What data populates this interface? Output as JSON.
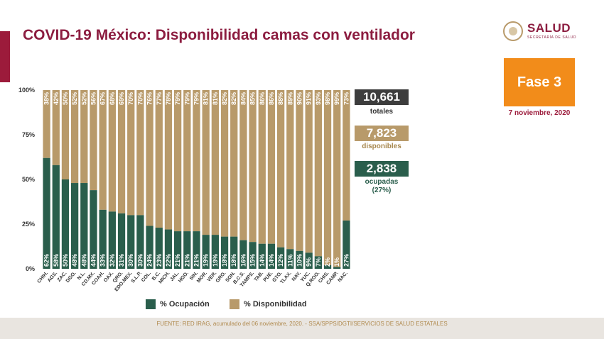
{
  "header": {
    "title": "COVID-19 México: Disponibilidad camas con ventilador",
    "logo_text": "SALUD",
    "logo_subtext": "SECRETARÍA DE SALUD"
  },
  "phase_label": "Fase 3",
  "date": "7 noviembre, 2020",
  "stats": {
    "total_value": "10,661",
    "total_label": "totales",
    "available_value": "7,823",
    "available_label": "disponibles",
    "occupied_value": "2,838",
    "occupied_label_1": "ocupadas",
    "occupied_label_2": "(27%)"
  },
  "legend": {
    "occupied": "% Ocupación",
    "available": "% Disponibilidad"
  },
  "footer": "FUENTE: RED IRAG, acumulado del 06 noviembre, 2020. -  SSA/SPPS/DGTI/SERVICIOS DE SALUD ESTATALES",
  "colors": {
    "occupied": "#2a5e4c",
    "available": "#b89a6a",
    "title": "#8c1d40",
    "total_box": "#3d3d3d"
  },
  "chart_data": {
    "type": "bar",
    "stacked": true,
    "categories": [
      "CHIH.",
      "AGS.",
      "ZAC.",
      "DGO.",
      "N.L.",
      "CD.MX.",
      "COAH.",
      "OAX.",
      "QRO.",
      "EDO.MEX.",
      "S.L.P.",
      "COL.",
      "B.C.",
      "MICH.",
      "JAL.",
      "HGO.",
      "SIN.",
      "MOR.",
      "VER.",
      "GRO.",
      "SON.",
      "B.C.S.",
      "TAMPS.",
      "TAB.",
      "PUE.",
      "GTO.",
      "TLAX.",
      "NAY.",
      "YUC.",
      "Q.ROO.",
      "CHIS.",
      "CAMP.",
      "NAC."
    ],
    "series": [
      {
        "name": "% Ocupación",
        "values": [
          62,
          58,
          50,
          48,
          48,
          44,
          33,
          32,
          31,
          30,
          30,
          24,
          23,
          22,
          21,
          21,
          21,
          19,
          19,
          18,
          18,
          16,
          15,
          14,
          14,
          12,
          11,
          10,
          9,
          7,
          2,
          1,
          27
        ]
      },
      {
        "name": "% Disponibilidad",
        "values": [
          38,
          42,
          50,
          52,
          52,
          56,
          67,
          68,
          69,
          70,
          70,
          76,
          77,
          78,
          79,
          79,
          79,
          81,
          81,
          82,
          82,
          84,
          85,
          86,
          86,
          88,
          89,
          90,
          91,
          93,
          98,
          99,
          73
        ]
      }
    ],
    "y_ticks": [
      "0%",
      "25%",
      "50%",
      "75%",
      "100%"
    ],
    "ylim": [
      0,
      100
    ],
    "legend_position": "bottom"
  }
}
